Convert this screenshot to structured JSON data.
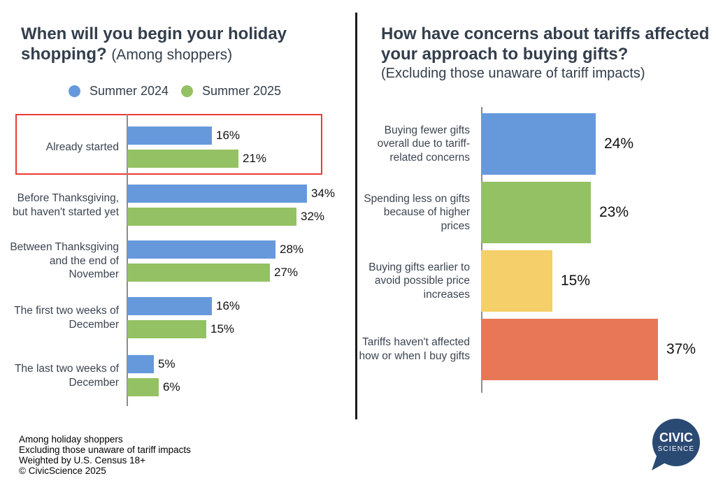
{
  "chart_data": [
    {
      "type": "bar",
      "orientation": "horizontal",
      "title": "When will you begin your holiday shopping?",
      "subtitle": "(Among shoppers)",
      "legend_position": "top-center",
      "grid": false,
      "xlim": [
        0,
        40
      ],
      "categories": [
        "Already started",
        "Before Thanksgiving, but haven't started yet",
        "Between Thanksgiving and the end of November",
        "The first two weeks of December",
        "The last two weeks of December"
      ],
      "series": [
        {
          "name": "Summer 2024",
          "color": "#6699DC",
          "values": [
            16,
            34,
            28,
            16,
            5
          ]
        },
        {
          "name": "Summer 2025",
          "color": "#94C164",
          "values": [
            21,
            32,
            27,
            15,
            6
          ]
        }
      ],
      "value_labels": [
        [
          "16%",
          "21%"
        ],
        [
          "34%",
          "32%"
        ],
        [
          "28%",
          "27%"
        ],
        [
          "16%",
          "15%"
        ],
        [
          "5%",
          "6%"
        ]
      ],
      "annotation": "red highlight box around the 'Already started' row"
    },
    {
      "type": "bar",
      "orientation": "horizontal",
      "title": "How have concerns about tariffs affected your approach to buying gifts?",
      "subtitle": "(Excluding those unaware of tariff impacts)",
      "grid": false,
      "xlim": [
        0,
        40
      ],
      "categories": [
        "Buying fewer gifts overall due to tariff-related concerns",
        "Spending less on gifts because of higher prices",
        "Buying gifts earlier to avoid possible price increases",
        "Tariffs haven't affected how or when I buy gifts"
      ],
      "values": [
        24,
        23,
        15,
        37
      ],
      "value_labels": [
        "24%",
        "23%",
        "15%",
        "37%"
      ],
      "bar_colors": [
        "#6699DC",
        "#94C164",
        "#F4CF6A",
        "#E87757"
      ]
    }
  ],
  "footer": {
    "lines": [
      "Among holiday shoppers",
      "Excluding those unaware of tariff impacts",
      "Weighted by U.S. Census 18+",
      "© CivicScience 2025"
    ]
  },
  "logo": {
    "line1": "CIVIC",
    "line2": "SCIENCE",
    "color": "#2B4A73"
  },
  "colors": {
    "title_text": "#333E4C",
    "label_text": "#3C4552",
    "value_text": "#111111",
    "axis_line": "#8C8C8C",
    "divider": "#1A1A1A",
    "highlight_box": "#EC3B33"
  }
}
